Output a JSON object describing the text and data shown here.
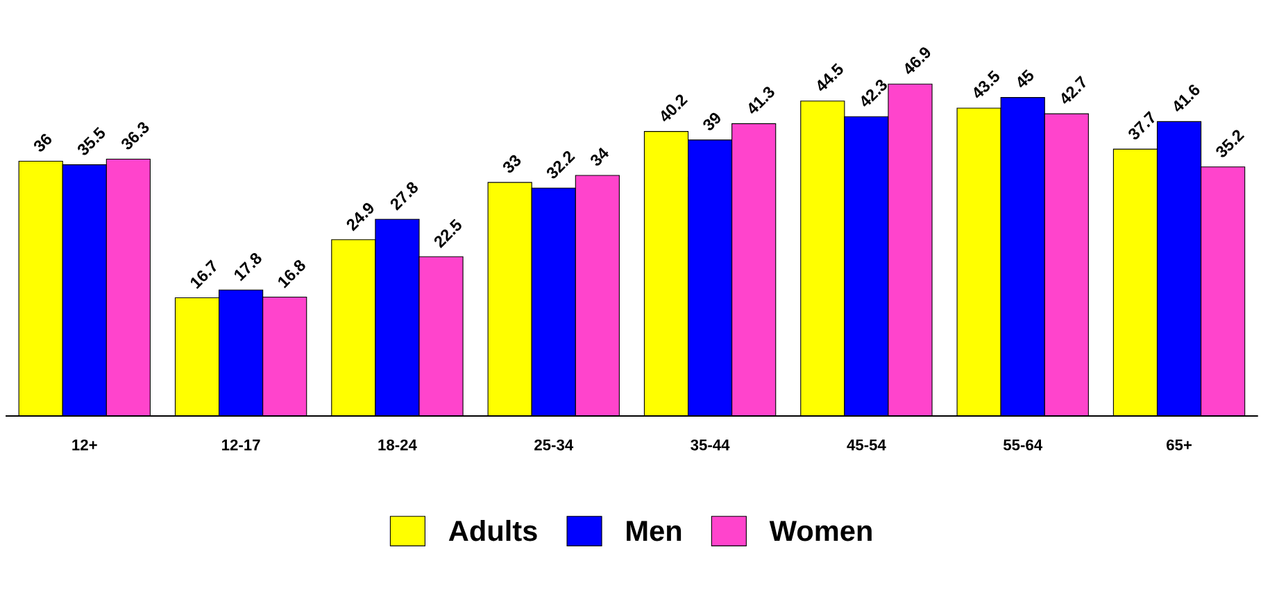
{
  "chart_data": {
    "type": "bar",
    "categories": [
      "12+",
      "12-17",
      "18-24",
      "25-34",
      "35-44",
      "45-54",
      "55-64",
      "65+"
    ],
    "series": [
      {
        "name": "Adults",
        "color": "#ffff00",
        "values": [
          36,
          16.7,
          24.9,
          33,
          40.2,
          44.5,
          43.5,
          37.7
        ]
      },
      {
        "name": "Men",
        "color": "#0000ff",
        "values": [
          35.5,
          17.8,
          27.8,
          32.2,
          39,
          42.3,
          45,
          41.6
        ]
      },
      {
        "name": "Women",
        "color": "#ff44cc",
        "values": [
          36.3,
          16.8,
          22.5,
          34,
          41.3,
          46.9,
          42.7,
          35.2
        ]
      }
    ],
    "data_labels": true,
    "legend": "bottom",
    "grid": false,
    "tick_labels": "x"
  }
}
